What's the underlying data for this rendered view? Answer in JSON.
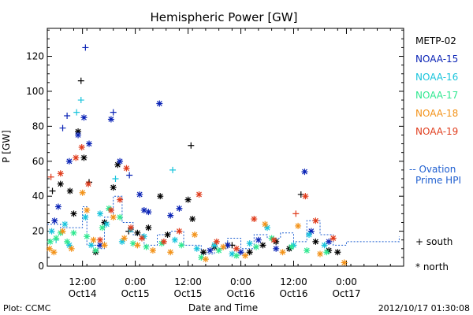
{
  "chart_data": {
    "type": "scatter",
    "title": "Hemispheric Power [GW]",
    "ylabel": "P [GW]",
    "xlabel": "Date and Time",
    "ylim": [
      0,
      136
    ],
    "xlim": [
      "2012-10-13T16:00",
      "2012-10-17T01:00"
    ],
    "grid": false,
    "yticks": [
      0,
      20,
      40,
      60,
      80,
      100,
      120
    ],
    "xticks": [
      {
        "time": "2012-10-14T00:00",
        "label": "12:00",
        "sub": "Oct14"
      },
      {
        "time": "2012-10-14T12:00",
        "label": "0:00",
        "sub": "Oct15"
      },
      {
        "time": "2012-10-15T00:00",
        "label": "12:00",
        "sub": "Oct15"
      },
      {
        "time": "2012-10-15T12:00",
        "label": "0:00",
        "sub": "Oct16"
      },
      {
        "time": "2012-10-16T00:00",
        "label": "12:00",
        "sub": "Oct16"
      },
      {
        "time": "2012-10-16T12:00",
        "label": "0:00",
        "sub": "Oct17"
      }
    ],
    "legend": {
      "placement": "right",
      "entries": [
        {
          "name": "METP-02",
          "color": "#000000"
        },
        {
          "name": "NOAA-15",
          "color": "#0b24b6"
        },
        {
          "name": "NOAA-16",
          "color": "#18c4dc"
        },
        {
          "name": "NOAA-17",
          "color": "#30e890"
        },
        {
          "name": "NOAA-18",
          "color": "#f39218"
        },
        {
          "name": "NOAA-19",
          "color": "#e03c1c"
        }
      ],
      "model_label": [
        "-- Ovation",
        "Prime HPI"
      ],
      "model_color": "#1f5fd0",
      "marker_south": "+ south",
      "marker_north": "* north"
    },
    "series": [
      {
        "name": "METP-02",
        "color": "#000000",
        "points": [
          [
            "2012-10-13T17:10",
            43,
            "+"
          ],
          [
            "2012-10-13T19:00",
            47,
            "*"
          ],
          [
            "2012-10-13T21:10",
            43,
            "*"
          ],
          [
            "2012-10-13T22:00",
            30,
            "*"
          ],
          [
            "2012-10-13T23:00",
            77,
            "*"
          ],
          [
            "2012-10-13T23:40",
            106,
            "+"
          ],
          [
            "2012-10-14T00:20",
            62,
            "*"
          ],
          [
            "2012-10-14T01:30",
            48,
            "+"
          ],
          [
            "2012-10-14T03:00",
            8,
            "*"
          ],
          [
            "2012-10-14T05:00",
            25,
            "*"
          ],
          [
            "2012-10-14T07:00",
            45,
            "*"
          ],
          [
            "2012-10-14T08:00",
            58,
            "*"
          ],
          [
            "2012-10-14T10:30",
            20,
            "+"
          ],
          [
            "2012-10-14T12:30",
            19,
            "*"
          ],
          [
            "2012-10-14T15:00",
            22,
            "*"
          ],
          [
            "2012-10-14T17:40",
            40,
            "*"
          ],
          [
            "2012-10-14T19:20",
            18,
            "*"
          ],
          [
            "2012-10-15T00:00",
            38,
            "*"
          ],
          [
            "2012-10-15T00:40",
            69,
            "+"
          ],
          [
            "2012-10-15T01:00",
            27,
            "*"
          ],
          [
            "2012-10-15T03:30",
            8,
            "*"
          ],
          [
            "2012-10-15T06:00",
            11,
            "*"
          ],
          [
            "2012-10-15T09:00",
            12,
            "*"
          ],
          [
            "2012-10-15T10:00",
            12,
            "+"
          ],
          [
            "2012-10-15T14:00",
            8,
            "*"
          ],
          [
            "2012-10-15T17:00",
            12,
            "*"
          ],
          [
            "2012-10-15T20:00",
            14,
            "*"
          ],
          [
            "2012-10-15T23:00",
            10,
            "*"
          ],
          [
            "2012-10-16T01:40",
            41,
            "+"
          ],
          [
            "2012-10-16T05:00",
            14,
            "*"
          ],
          [
            "2012-10-16T08:00",
            9,
            "*"
          ],
          [
            "2012-10-16T10:00",
            8,
            "*"
          ]
        ]
      },
      {
        "name": "NOAA-15",
        "color": "#0b24b6",
        "points": [
          [
            "2012-10-13T17:40",
            26,
            "*"
          ],
          [
            "2012-10-13T18:30",
            34,
            "*"
          ],
          [
            "2012-10-13T19:30",
            79,
            "+"
          ],
          [
            "2012-10-13T20:30",
            86,
            "+"
          ],
          [
            "2012-10-13T21:00",
            60,
            "*"
          ],
          [
            "2012-10-13T23:00",
            75,
            "*"
          ],
          [
            "2012-10-14T00:20",
            85,
            "*"
          ],
          [
            "2012-10-14T00:40",
            125,
            "+"
          ],
          [
            "2012-10-14T01:30",
            70,
            "*"
          ],
          [
            "2012-10-14T04:00",
            12,
            "*"
          ],
          [
            "2012-10-14T06:30",
            84,
            "*"
          ],
          [
            "2012-10-14T07:00",
            88,
            "+"
          ],
          [
            "2012-10-14T08:30",
            60,
            "*"
          ],
          [
            "2012-10-14T10:40",
            52,
            "+"
          ],
          [
            "2012-10-14T13:00",
            41,
            "*"
          ],
          [
            "2012-10-14T14:00",
            32,
            "*"
          ],
          [
            "2012-10-14T15:00",
            31,
            "*"
          ],
          [
            "2012-10-14T17:30",
            93,
            "*"
          ],
          [
            "2012-10-14T20:00",
            29,
            "*"
          ],
          [
            "2012-10-14T22:00",
            33,
            "*"
          ],
          [
            "2012-10-15T05:00",
            9,
            "*"
          ],
          [
            "2012-10-15T09:00",
            12,
            "*"
          ],
          [
            "2012-10-15T12:00",
            8,
            "*"
          ],
          [
            "2012-10-15T16:00",
            15,
            "*"
          ],
          [
            "2012-10-15T20:00",
            10,
            "*"
          ],
          [
            "2012-10-16T02:30",
            54,
            "*"
          ],
          [
            "2012-10-16T04:00",
            20,
            "*"
          ],
          [
            "2012-10-16T08:00",
            14,
            "*"
          ]
        ]
      },
      {
        "name": "NOAA-16",
        "color": "#18c4dc",
        "points": [
          [
            "2012-10-13T17:00",
            20,
            "*"
          ],
          [
            "2012-10-13T18:00",
            15,
            "+"
          ],
          [
            "2012-10-13T20:00",
            24,
            "*"
          ],
          [
            "2012-10-13T21:00",
            12,
            "*"
          ],
          [
            "2012-10-13T22:40",
            88,
            "+"
          ],
          [
            "2012-10-13T23:40",
            95,
            "+"
          ],
          [
            "2012-10-14T00:40",
            28,
            "*"
          ],
          [
            "2012-10-14T02:00",
            12,
            "*"
          ],
          [
            "2012-10-14T04:00",
            30,
            "*"
          ],
          [
            "2012-10-14T05:30",
            24,
            "*"
          ],
          [
            "2012-10-14T07:30",
            50,
            "+"
          ],
          [
            "2012-10-14T09:00",
            14,
            "*"
          ],
          [
            "2012-10-14T11:00",
            21,
            "*"
          ],
          [
            "2012-10-14T14:00",
            17,
            "*"
          ],
          [
            "2012-10-14T20:30",
            55,
            "+"
          ],
          [
            "2012-10-14T21:00",
            15,
            "*"
          ],
          [
            "2012-10-15T02:00",
            10,
            "*"
          ],
          [
            "2012-10-15T06:00",
            12,
            "*"
          ],
          [
            "2012-10-15T10:00",
            7,
            "*"
          ],
          [
            "2012-10-15T14:00",
            13,
            "*"
          ],
          [
            "2012-10-15T18:00",
            22,
            "*"
          ],
          [
            "2012-10-16T00:00",
            12,
            "*"
          ],
          [
            "2012-10-16T03:30",
            18,
            "*"
          ],
          [
            "2012-10-16T07:00",
            12,
            "*"
          ]
        ]
      },
      {
        "name": "NOAA-17",
        "color": "#30e890",
        "points": [
          [
            "2012-10-13T16:40",
            14,
            "*"
          ],
          [
            "2012-10-13T18:00",
            16,
            "*"
          ],
          [
            "2012-10-13T19:00",
            19,
            "*"
          ],
          [
            "2012-10-13T20:30",
            14,
            "*"
          ],
          [
            "2012-10-13T22:00",
            19,
            "*"
          ],
          [
            "2012-10-14T01:00",
            17,
            "*"
          ],
          [
            "2012-10-14T03:00",
            9,
            "*"
          ],
          [
            "2012-10-14T04:30",
            22,
            "*"
          ],
          [
            "2012-10-14T06:00",
            33,
            "*"
          ],
          [
            "2012-10-14T08:30",
            28,
            "*"
          ],
          [
            "2012-10-14T11:30",
            13,
            "*"
          ],
          [
            "2012-10-14T14:30",
            11,
            "*"
          ],
          [
            "2012-10-14T18:00",
            13,
            "*"
          ],
          [
            "2012-10-14T22:30",
            12,
            "*"
          ],
          [
            "2012-10-15T03:00",
            5,
            "*"
          ],
          [
            "2012-10-15T07:00",
            9,
            "*"
          ],
          [
            "2012-10-15T11:00",
            6,
            "*"
          ],
          [
            "2012-10-15T15:30",
            11,
            "*"
          ],
          [
            "2012-10-15T19:00",
            16,
            "*"
          ],
          [
            "2012-10-15T23:30",
            11,
            "*"
          ],
          [
            "2012-10-16T03:00",
            9,
            "*"
          ],
          [
            "2012-10-16T07:30",
            8,
            "*"
          ]
        ]
      },
      {
        "name": "NOAA-18",
        "color": "#f39218",
        "points": [
          [
            "2012-10-13T16:30",
            10,
            "*"
          ],
          [
            "2012-10-13T17:30",
            8,
            "*"
          ],
          [
            "2012-10-13T19:30",
            20,
            "*"
          ],
          [
            "2012-10-13T21:30",
            10,
            "*"
          ],
          [
            "2012-10-14T00:00",
            42,
            "*"
          ],
          [
            "2012-10-14T01:00",
            32,
            "*"
          ],
          [
            "2012-10-14T02:30",
            15,
            "*"
          ],
          [
            "2012-10-14T05:00",
            12,
            "*"
          ],
          [
            "2012-10-14T07:00",
            28,
            "*"
          ],
          [
            "2012-10-14T09:30",
            16,
            "*"
          ],
          [
            "2012-10-14T12:30",
            12,
            "*"
          ],
          [
            "2012-10-14T16:00",
            9,
            "*"
          ],
          [
            "2012-10-14T20:00",
            8,
            "*"
          ],
          [
            "2012-10-15T01:30",
            18,
            "*"
          ],
          [
            "2012-10-15T04:00",
            4,
            "*"
          ],
          [
            "2012-10-15T08:00",
            11,
            "*"
          ],
          [
            "2012-10-15T13:00",
            6,
            "*"
          ],
          [
            "2012-10-15T17:30",
            24,
            "*"
          ],
          [
            "2012-10-15T21:30",
            8,
            "*"
          ],
          [
            "2012-10-16T01:00",
            23,
            "*"
          ],
          [
            "2012-10-16T06:00",
            7,
            "*"
          ],
          [
            "2012-10-16T11:30",
            2,
            "*"
          ]
        ]
      },
      {
        "name": "NOAA-19",
        "color": "#e03c1c",
        "points": [
          [
            "2012-10-13T16:50",
            51,
            "+"
          ],
          [
            "2012-10-13T19:00",
            53,
            "*"
          ],
          [
            "2012-10-13T22:30",
            62,
            "*"
          ],
          [
            "2012-10-13T23:50",
            68,
            "*"
          ],
          [
            "2012-10-14T01:20",
            47,
            "*"
          ],
          [
            "2012-10-14T04:00",
            15,
            "*"
          ],
          [
            "2012-10-14T06:30",
            32,
            "*"
          ],
          [
            "2012-10-14T08:30",
            38,
            "*"
          ],
          [
            "2012-10-14T10:00",
            56,
            "*"
          ],
          [
            "2012-10-14T11:00",
            22,
            "*"
          ],
          [
            "2012-10-14T13:30",
            16,
            "*"
          ],
          [
            "2012-10-14T18:30",
            14,
            "*"
          ],
          [
            "2012-10-14T22:00",
            20,
            "*"
          ],
          [
            "2012-10-15T02:30",
            41,
            "*"
          ],
          [
            "2012-10-15T06:30",
            14,
            "*"
          ],
          [
            "2012-10-15T11:00",
            10,
            "*"
          ],
          [
            "2012-10-15T15:00",
            27,
            "*"
          ],
          [
            "2012-10-15T19:30",
            15,
            "*"
          ],
          [
            "2012-10-16T00:30",
            30,
            "+"
          ],
          [
            "2012-10-16T02:40",
            40,
            "*"
          ],
          [
            "2012-10-16T05:00",
            26,
            "*"
          ],
          [
            "2012-10-16T09:00",
            16,
            "*"
          ]
        ]
      },
      {
        "name": "Ovation Prime HPI",
        "color": "#1f5fd0",
        "style": "dashed-line",
        "points": [
          [
            "2012-10-13T16:00",
            24
          ],
          [
            "2012-10-13T19:00",
            22
          ],
          [
            "2012-10-13T22:00",
            22
          ],
          [
            "2012-10-14T00:00",
            34
          ],
          [
            "2012-10-14T01:00",
            12
          ],
          [
            "2012-10-14T03:30",
            10
          ],
          [
            "2012-10-14T05:00",
            28
          ],
          [
            "2012-10-14T07:00",
            40
          ],
          [
            "2012-10-14T09:00",
            25
          ],
          [
            "2012-10-14T11:30",
            18
          ],
          [
            "2012-10-14T14:00",
            12
          ],
          [
            "2012-10-14T17:00",
            18
          ],
          [
            "2012-10-14T20:00",
            20
          ],
          [
            "2012-10-14T23:00",
            12
          ],
          [
            "2012-10-15T03:00",
            7
          ],
          [
            "2012-10-15T06:00",
            10
          ],
          [
            "2012-10-15T09:00",
            16
          ],
          [
            "2012-10-15T12:00",
            10
          ],
          [
            "2012-10-15T15:00",
            18
          ],
          [
            "2012-10-15T18:00",
            16
          ],
          [
            "2012-10-15T21:00",
            19
          ],
          [
            "2012-10-16T00:00",
            14
          ],
          [
            "2012-10-16T03:00",
            26
          ],
          [
            "2012-10-16T06:00",
            18
          ],
          [
            "2012-10-16T09:00",
            12
          ],
          [
            "2012-10-16T12:00",
            14
          ],
          [
            "2012-10-17T00:00",
            17
          ]
        ]
      }
    ]
  },
  "footer": {
    "plot_credit": "Plot: CCMC",
    "timestamp": "2012/10/17 01:30:08"
  }
}
